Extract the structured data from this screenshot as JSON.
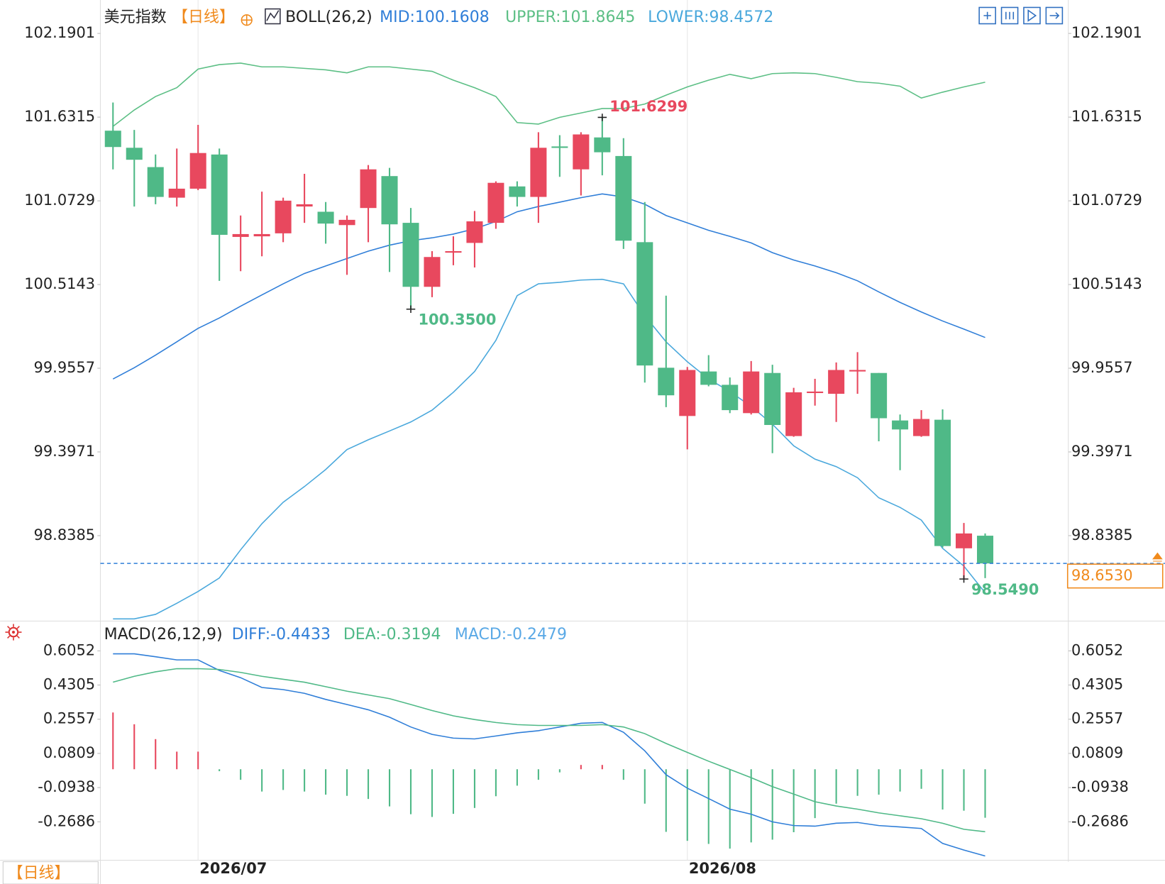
{
  "chart_data": [
    {
      "type": "candlestick",
      "title": "美元指数",
      "period": "【日线】",
      "indicator": "BOLL(26,2)",
      "categories": [
        null,
        null,
        null,
        null,
        "2026/07",
        null,
        null,
        null,
        null,
        null,
        null,
        null,
        null,
        null,
        null,
        null,
        null,
        null,
        null,
        null,
        null,
        null,
        null,
        null,
        null,
        null,
        null,
        "2026/08",
        null,
        null,
        null,
        null,
        null,
        null,
        null,
        null,
        null,
        null,
        null,
        null,
        null,
        null
      ],
      "open": [
        101.541,
        101.427,
        101.298,
        101.094,
        101.154,
        101.382,
        100.832,
        100.836,
        100.856,
        101.035,
        101.0,
        100.911,
        101.025,
        101.238,
        100.926,
        100.499,
        100.727,
        100.792,
        100.926,
        101.169,
        101.099,
        101.436,
        101.283,
        101.496,
        101.372,
        100.797,
        99.959,
        99.637,
        99.934,
        99.845,
        99.656,
        99.924,
        99.503,
        99.79,
        99.785,
        99.934,
        99.924,
        99.607,
        99.503,
        99.612,
        98.754,
        98.838
      ],
      "high": [
        101.729,
        101.546,
        101.382,
        101.422,
        101.58,
        101.422,
        100.975,
        101.134,
        101.094,
        101.253,
        101.065,
        100.975,
        101.312,
        101.293,
        101.025,
        100.737,
        100.836,
        101.005,
        101.203,
        101.203,
        101.531,
        101.511,
        101.531,
        101.6299,
        101.491,
        101.065,
        100.44,
        99.964,
        100.043,
        99.894,
        100.004,
        99.979,
        99.825,
        99.885,
        99.994,
        100.063,
        99.924,
        99.647,
        99.676,
        99.681,
        98.923,
        98.853
      ],
      "low": [
        101.283,
        101.035,
        101.05,
        101.035,
        101.144,
        100.539,
        100.603,
        100.703,
        100.797,
        100.926,
        100.787,
        100.579,
        100.797,
        100.598,
        100.35,
        100.43,
        100.643,
        100.628,
        100.886,
        101.035,
        100.926,
        101.233,
        101.109,
        101.243,
        100.752,
        99.86,
        99.696,
        99.414,
        99.835,
        99.656,
        99.647,
        99.389,
        99.498,
        99.706,
        99.597,
        99.785,
        99.468,
        99.275,
        99.498,
        98.759,
        98.549,
        98.555
      ],
      "close": [
        101.432,
        101.347,
        101.099,
        101.154,
        101.392,
        100.846,
        100.851,
        100.851,
        101.074,
        101.05,
        100.921,
        100.946,
        101.283,
        100.916,
        100.499,
        100.698,
        100.737,
        100.936,
        101.193,
        101.099,
        101.427,
        101.427,
        101.516,
        101.397,
        100.807,
        99.974,
        99.775,
        99.944,
        99.845,
        99.676,
        99.934,
        99.577,
        99.795,
        99.8,
        99.944,
        99.944,
        99.622,
        99.547,
        99.617,
        98.769,
        98.853,
        98.653
      ],
      "up_color": "#e8485e",
      "down_color": "#4fb987",
      "lines": [
        {
          "label": "MID:100.1608",
          "color": "#2f7ed8",
          "values": [
            99.884,
            99.959,
            100.043,
            100.132,
            100.222,
            100.291,
            100.37,
            100.445,
            100.519,
            100.588,
            100.638,
            100.688,
            100.737,
            100.777,
            100.807,
            100.826,
            100.851,
            100.886,
            100.935,
            101.0,
            101.035,
            101.064,
            101.094,
            101.119,
            101.099,
            101.05,
            100.975,
            100.926,
            100.876,
            100.836,
            100.792,
            100.727,
            100.678,
            100.638,
            100.593,
            100.539,
            100.465,
            100.395,
            100.331,
            100.271,
            100.217,
            100.1608
          ]
        },
        {
          "label": "UPPER:101.8645",
          "color": "#5cbf85",
          "values": [
            101.57,
            101.679,
            101.769,
            101.828,
            101.952,
            101.982,
            101.992,
            101.967,
            101.967,
            101.957,
            101.947,
            101.927,
            101.967,
            101.967,
            101.952,
            101.937,
            101.878,
            101.828,
            101.769,
            101.595,
            101.585,
            101.63,
            101.659,
            101.689,
            101.689,
            101.719,
            101.778,
            101.833,
            101.878,
            101.917,
            101.888,
            101.922,
            101.927,
            101.922,
            101.897,
            101.868,
            101.858,
            101.838,
            101.759,
            101.798,
            101.833,
            101.8645
          ]
        },
        {
          "label": "LOWER:98.4572",
          "color": "#4aa8dc",
          "values": [
            98.283,
            98.283,
            98.313,
            98.387,
            98.466,
            98.556,
            98.744,
            98.918,
            99.061,
            99.166,
            99.28,
            99.413,
            99.478,
            99.537,
            99.597,
            99.676,
            99.795,
            99.934,
            100.142,
            100.44,
            100.519,
            100.529,
            100.544,
            100.549,
            100.519,
            100.306,
            100.132,
            99.999,
            99.884,
            99.8,
            99.701,
            99.582,
            99.438,
            99.349,
            99.299,
            99.225,
            99.091,
            99.027,
            98.942,
            98.754,
            98.635,
            98.4572
          ]
        }
      ],
      "high_labels": [
        101.6299
      ],
      "low_labels": [
        {
          "value": 100.35,
          "label": "100.3500"
        },
        {
          "value": 98.549,
          "label": "98.5490"
        }
      ],
      "last_price": {
        "value": 98.653,
        "label": "98.6530"
      },
      "ylim": [
        98.2735,
        102.3884
      ],
      "yticks": [
        102.1901,
        101.6315,
        101.0729,
        100.5143,
        99.9557,
        99.3971,
        98.8385
      ]
    },
    {
      "type": "macd",
      "indicator": "MACD(26,12,9)",
      "lines": [
        {
          "label": "DIFF:-0.4433",
          "color": "#2f7ed8",
          "values": [
            0.59,
            0.59,
            0.575,
            0.559,
            0.559,
            0.505,
            0.468,
            0.418,
            0.407,
            0.388,
            0.357,
            0.331,
            0.304,
            0.266,
            0.216,
            0.178,
            0.159,
            0.155,
            0.17,
            0.186,
            0.197,
            0.216,
            0.235,
            0.239,
            0.189,
            0.094,
            -0.028,
            -0.097,
            -0.15,
            -0.204,
            -0.23,
            -0.269,
            -0.288,
            -0.291,
            -0.276,
            -0.272,
            -0.288,
            -0.295,
            -0.303,
            -0.379,
            -0.413,
            -0.4433
          ]
        },
        {
          "label": "DEA:-0.3194",
          "color": "#4fb987",
          "values": [
            0.445,
            0.475,
            0.498,
            0.514,
            0.514,
            0.51,
            0.495,
            0.475,
            0.46,
            0.445,
            0.422,
            0.399,
            0.38,
            0.361,
            0.331,
            0.3,
            0.273,
            0.254,
            0.239,
            0.228,
            0.224,
            0.224,
            0.224,
            0.228,
            0.216,
            0.182,
            0.132,
            0.086,
            0.041,
            -0.001,
            -0.043,
            -0.089,
            -0.127,
            -0.166,
            -0.188,
            -0.204,
            -0.223,
            -0.238,
            -0.253,
            -0.276,
            -0.307,
            -0.3194
          ]
        }
      ],
      "histogram": {
        "label": "MACD:-0.2479",
        "label_color": "#5aa9e6",
        "values": [
          0.29,
          0.23,
          0.154,
          0.09,
          0.09,
          -0.01,
          -0.054,
          -0.114,
          -0.106,
          -0.114,
          -0.13,
          -0.136,
          -0.152,
          -0.19,
          -0.23,
          -0.244,
          -0.228,
          -0.198,
          -0.138,
          -0.084,
          -0.054,
          -0.016,
          0.022,
          0.022,
          -0.054,
          -0.176,
          -0.32,
          -0.366,
          -0.382,
          -0.406,
          -0.374,
          -0.36,
          -0.322,
          -0.25,
          -0.176,
          -0.136,
          -0.13,
          -0.114,
          -0.1,
          -0.206,
          -0.212,
          -0.2479
        ]
      },
      "up_color": "#e8485e",
      "down_color": "#4fb987",
      "ylim": [
        -0.45,
        0.7425
      ],
      "yticks": [
        0.6052,
        0.4305,
        0.2557,
        0.0809,
        -0.0938,
        -0.2686
      ]
    }
  ]
}
